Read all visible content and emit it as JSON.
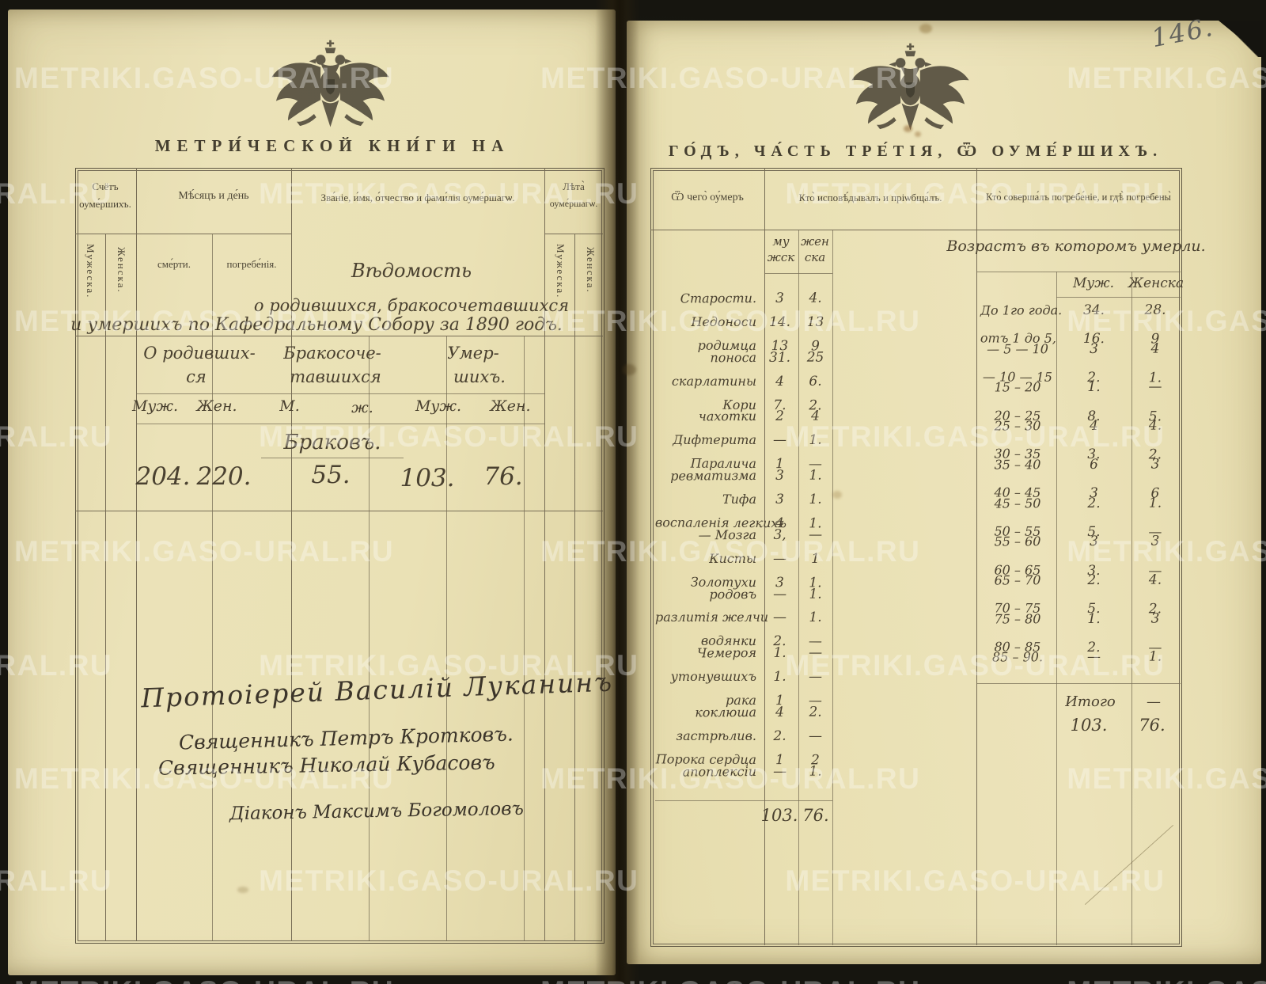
{
  "page_number": "146.",
  "watermark": {
    "text": "METRIKI.GASO-URAL.RU"
  },
  "left_page": {
    "printed_title": "МЕТРИ́ЧЕСКОЙ КНИ́ГИ НА",
    "columns": {
      "count_title_1": "Счётъ",
      "count_title_2": "оуме́ршихъ.",
      "count_sub_m": "Мужеска.",
      "count_sub_f": "Женска.",
      "month_day_title": "Мѣ́сяцъ и де́нь",
      "month_day_sub_1": "сме́рти.",
      "month_day_sub_2": "погребе́нія.",
      "name_title": "Зва́ніе, и́мя, о́тчество и фами́лія оуме́ршагѡ.",
      "age_title_1": "Лѣта̀",
      "age_title_2": "оуме́ршагѡ.",
      "age_sub_m": "Мужеска.",
      "age_sub_f": "Женска."
    },
    "vedomost": {
      "line1": "Вѣдомость",
      "line2": "о родившихся, бракосочетавшихся",
      "line3": "и умершихъ по Кафедральному Собору за 1890 годъ."
    },
    "summary": {
      "group1_line1": "О родивших-",
      "group1_line2": "ся",
      "group2_line1": "Бракосоче-",
      "group2_line2": "тавшихся",
      "group3_line1": "Умер-",
      "group3_line2": "шихъ.",
      "sub_labels": [
        "Муж.",
        "Жен.",
        "М.",
        "ж.",
        "Муж.",
        "Жен."
      ],
      "brakov_label": "Браковъ.",
      "born_m": "204.",
      "born_f": "220.",
      "marriages": "55.",
      "died_m": "103.",
      "died_f": "76."
    },
    "signatures": [
      "Протоіерей Василій Луканинъ",
      "Священникъ Петръ Кротковъ.",
      "Священникъ Николай Кубасовъ",
      "Діаконъ Максимъ Богомоловъ"
    ]
  },
  "right_page": {
    "printed_title": "ГО́ДЪ, ЧА́СТЬ ТРЕ́ТІЯ, Ѿ ОУМЕ́РШИХЪ.",
    "col1_header": "Ѿ чего̀ оу́меръ",
    "col2_header": "Кто̀ исповѣ́дывалъ и пріѡбща́лъ.",
    "col3_header": "Кто̀ соверша́лъ погребе́ніе, и гдѣ̀ погребены̀",
    "sex_m_1": "му",
    "sex_m_2": "жск",
    "sex_f_1": "жен",
    "sex_f_2": "ска",
    "causes": [
      {
        "name": "Старости.",
        "m": "3",
        "f": "4."
      },
      {
        "name": "Недоноси",
        "m": "14.",
        "f": "13"
      },
      {
        "name": "родимца",
        "m": "13",
        "f": "9"
      },
      {
        "name": "поноса",
        "m": "31.",
        "f": "25"
      },
      {
        "name": "скарлатины",
        "m": "4",
        "f": "6."
      },
      {
        "name": "Кори",
        "m": "7.",
        "f": "2."
      },
      {
        "name": "чахотки",
        "m": "2",
        "f": "4"
      },
      {
        "name": "Дифтерита",
        "m": "—",
        "f": "1."
      },
      {
        "name": "Паралича",
        "m": "1",
        "f": "—"
      },
      {
        "name": "ревматизма",
        "m": "3",
        "f": "1."
      },
      {
        "name": "Тифа",
        "m": "3",
        "f": "1."
      },
      {
        "name": "воспаленія легкихъ",
        "m": "4",
        "f": "1."
      },
      {
        "name": "— Мозга",
        "m": "3,",
        "f": "—"
      },
      {
        "name": "Кисты",
        "m": "—",
        "f": "1"
      },
      {
        "name": "Золотухи",
        "m": "3",
        "f": "1."
      },
      {
        "name": "родовъ",
        "m": "—",
        "f": "1."
      },
      {
        "name": "разлитія желчи",
        "m": "—",
        "f": "1."
      },
      {
        "name": "водянки",
        "m": "2.",
        "f": "—"
      },
      {
        "name": "Чемероя",
        "m": "1.",
        "f": "—"
      },
      {
        "name": "утонувшихъ",
        "m": "1.",
        "f": "—"
      },
      {
        "name": "рака",
        "m": "1",
        "f": "—"
      },
      {
        "name": "коклюша",
        "m": "4",
        "f": "2."
      },
      {
        "name": "застрѣлив.",
        "m": "2.",
        "f": "—"
      },
      {
        "name": "Порока сердца",
        "m": "1",
        "f": "2"
      },
      {
        "name": "апоплексіи",
        "m": "—",
        "f": "1."
      }
    ],
    "causes_total_m": "103.",
    "causes_total_f": "76.",
    "age_table": {
      "header": "Возрастъ въ которомъ умерли.",
      "col_m": "Муж.",
      "col_f": "Женска",
      "rows": [
        {
          "range": "До 1го года.",
          "m": "34.",
          "f": "28."
        },
        {
          "range": "отъ 1 до 5,",
          "m": "16.",
          "f": "9"
        },
        {
          "range": "— 5 — 10",
          "m": "3",
          "f": "4"
        },
        {
          "range": "— 10 — 15",
          "m": "2.",
          "f": "1."
        },
        {
          "range": "15 – 20",
          "m": "1.",
          "f": "—"
        },
        {
          "range": "20 – 25",
          "m": "8.",
          "f": "5."
        },
        {
          "range": "25 – 30",
          "m": "4",
          "f": "4."
        },
        {
          "range": "30 – 35",
          "m": "3.",
          "f": "2."
        },
        {
          "range": "35 – 40",
          "m": "6",
          "f": "3"
        },
        {
          "range": "40 – 45",
          "m": "3",
          "f": "6"
        },
        {
          "range": "45 – 50",
          "m": "2.",
          "f": "1."
        },
        {
          "range": "50 – 55",
          "m": "5.",
          "f": "—"
        },
        {
          "range": "55 – 60",
          "m": "3",
          "f": "3"
        },
        {
          "range": "60 – 65",
          "m": "3.",
          "f": "—"
        },
        {
          "range": "65 – 70",
          "m": "2.",
          "f": "4."
        },
        {
          "range": "70 – 75",
          "m": "5.",
          "f": "2."
        },
        {
          "range": "75 – 80",
          "m": "1.",
          "f": "3"
        },
        {
          "range": "80 – 85",
          "m": "2.",
          "f": "—"
        },
        {
          "range": "85 – 90.",
          "m": "—",
          "f": "1."
        }
      ],
      "itogo_label": "Итого",
      "itogo_dash": "—",
      "total_m": "103.",
      "total_f": "76."
    }
  },
  "colors": {
    "paper": "#eae1b5",
    "printed_ink": "#4d4636",
    "handwriting_ink": "#4a4130",
    "background": "#15140f",
    "watermark": "#ffffff"
  }
}
